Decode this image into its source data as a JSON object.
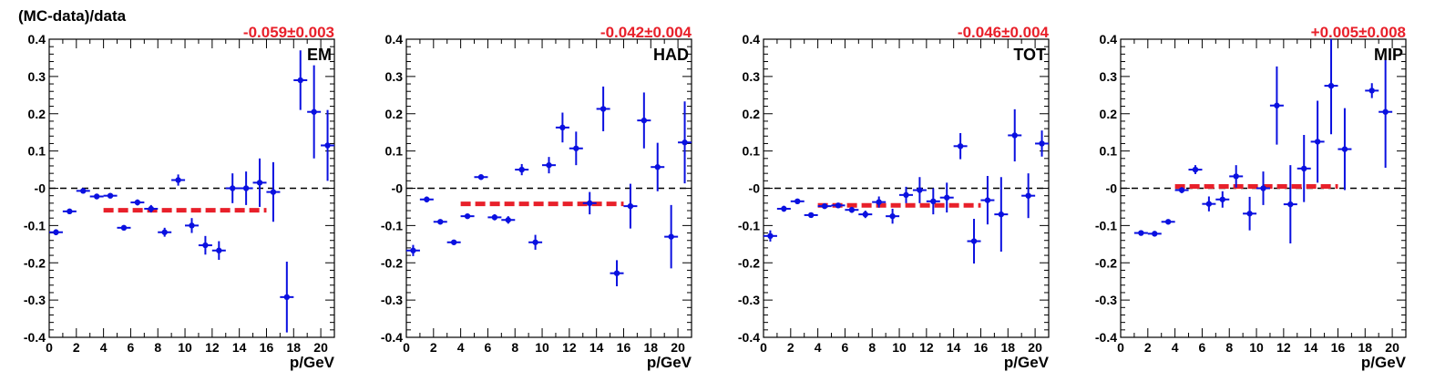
{
  "y_title": "(MC-data)/data",
  "chart_data": [
    {
      "type": "scatter",
      "label": "EM",
      "fit_label": "-0.059±0.003",
      "xlabel": "p/GeV",
      "xlim": [
        0,
        21
      ],
      "ylim": [
        -0.4,
        0.4
      ],
      "xticks": [
        0,
        2,
        4,
        6,
        8,
        10,
        12,
        14,
        16,
        18,
        20
      ],
      "yticks": [
        -0.4,
        -0.3,
        -0.2,
        -0.1,
        0,
        0.1,
        0.2,
        0.3,
        0.4
      ],
      "ytick_labels": [
        "-0.4",
        "-0.3",
        "-0.2",
        "-0.1",
        "-0",
        "0.1",
        "0.2",
        "0.3",
        "0.4"
      ],
      "points": [
        {
          "x": 0.5,
          "y": -0.118,
          "err": 0.008
        },
        {
          "x": 1.5,
          "y": -0.062,
          "err": 0.006
        },
        {
          "x": 2.5,
          "y": -0.007,
          "err": 0.006
        },
        {
          "x": 3.5,
          "y": -0.022,
          "err": 0.006
        },
        {
          "x": 4.5,
          "y": -0.02,
          "err": 0.006
        },
        {
          "x": 5.5,
          "y": -0.106,
          "err": 0.006
        },
        {
          "x": 6.5,
          "y": -0.038,
          "err": 0.008
        },
        {
          "x": 7.5,
          "y": -0.055,
          "err": 0.01
        },
        {
          "x": 8.5,
          "y": -0.118,
          "err": 0.012
        },
        {
          "x": 9.5,
          "y": 0.022,
          "err": 0.015
        },
        {
          "x": 10.5,
          "y": -0.1,
          "err": 0.02
        },
        {
          "x": 11.5,
          "y": -0.153,
          "err": 0.025
        },
        {
          "x": 12.5,
          "y": -0.167,
          "err": 0.025
        },
        {
          "x": 13.5,
          "y": 0.0,
          "err": 0.04
        },
        {
          "x": 14.5,
          "y": 0.0,
          "err": 0.045
        },
        {
          "x": 15.5,
          "y": 0.015,
          "err": 0.065
        },
        {
          "x": 16.5,
          "y": -0.01,
          "err": 0.08
        },
        {
          "x": 17.5,
          "y": -0.292,
          "err": 0.095
        },
        {
          "x": 18.5,
          "y": 0.29,
          "err": 0.08
        },
        {
          "x": 19.5,
          "y": 0.205,
          "err": 0.125
        },
        {
          "x": 20.5,
          "y": 0.115,
          "err": 0.095
        }
      ],
      "fit": {
        "value": -0.059,
        "x_from": 4,
        "x_to": 16
      },
      "zero_line": 0
    },
    {
      "type": "scatter",
      "label": "HAD",
      "fit_label": "-0.042±0.004",
      "xlabel": "p/GeV",
      "xlim": [
        0,
        21
      ],
      "ylim": [
        -0.4,
        0.4
      ],
      "xticks": [
        0,
        2,
        4,
        6,
        8,
        10,
        12,
        14,
        16,
        18,
        20
      ],
      "yticks": [
        -0.4,
        -0.3,
        -0.2,
        -0.1,
        0,
        0.1,
        0.2,
        0.3,
        0.4
      ],
      "ytick_labels": [
        "-0.4",
        "-0.3",
        "-0.2",
        "-0.1",
        "-0",
        "0.1",
        "0.2",
        "0.3",
        "0.4"
      ],
      "points": [
        {
          "x": 0.5,
          "y": -0.167,
          "err": 0.015
        },
        {
          "x": 1.5,
          "y": -0.03,
          "err": 0.008
        },
        {
          "x": 2.5,
          "y": -0.09,
          "err": 0.006
        },
        {
          "x": 3.5,
          "y": -0.145,
          "err": 0.006
        },
        {
          "x": 4.5,
          "y": -0.075,
          "err": 0.006
        },
        {
          "x": 5.5,
          "y": 0.03,
          "err": 0.006
        },
        {
          "x": 6.5,
          "y": -0.078,
          "err": 0.008
        },
        {
          "x": 7.5,
          "y": -0.085,
          "err": 0.01
        },
        {
          "x": 8.5,
          "y": 0.05,
          "err": 0.015
        },
        {
          "x": 9.5,
          "y": -0.145,
          "err": 0.02
        },
        {
          "x": 10.5,
          "y": 0.062,
          "err": 0.022
        },
        {
          "x": 11.5,
          "y": 0.163,
          "err": 0.04
        },
        {
          "x": 12.5,
          "y": 0.107,
          "err": 0.045
        },
        {
          "x": 13.5,
          "y": -0.04,
          "err": 0.03
        },
        {
          "x": 14.5,
          "y": 0.213,
          "err": 0.06
        },
        {
          "x": 15.5,
          "y": -0.228,
          "err": 0.035
        },
        {
          "x": 16.5,
          "y": -0.048,
          "err": 0.06
        },
        {
          "x": 17.5,
          "y": 0.182,
          "err": 0.075
        },
        {
          "x": 18.5,
          "y": 0.057,
          "err": 0.065
        },
        {
          "x": 19.5,
          "y": -0.13,
          "err": 0.085
        },
        {
          "x": 20.5,
          "y": 0.123,
          "err": 0.11
        }
      ],
      "fit": {
        "value": -0.042,
        "x_from": 4,
        "x_to": 16
      },
      "zero_line": 0
    },
    {
      "type": "scatter",
      "label": "TOT",
      "fit_label": "-0.046±0.004",
      "xlabel": "p/GeV",
      "xlim": [
        0,
        21
      ],
      "ylim": [
        -0.4,
        0.4
      ],
      "xticks": [
        0,
        2,
        4,
        6,
        8,
        10,
        12,
        14,
        16,
        18,
        20
      ],
      "yticks": [
        -0.4,
        -0.3,
        -0.2,
        -0.1,
        0,
        0.1,
        0.2,
        0.3,
        0.4
      ],
      "ytick_labels": [
        "-0.4",
        "-0.3",
        "-0.2",
        "-0.1",
        "-0",
        "0.1",
        "0.2",
        "0.3",
        "0.4"
      ],
      "points": [
        {
          "x": 0.5,
          "y": -0.128,
          "err": 0.015
        },
        {
          "x": 1.5,
          "y": -0.055,
          "err": 0.008
        },
        {
          "x": 2.5,
          "y": -0.035,
          "err": 0.006
        },
        {
          "x": 3.5,
          "y": -0.072,
          "err": 0.006
        },
        {
          "x": 4.5,
          "y": -0.048,
          "err": 0.006
        },
        {
          "x": 5.5,
          "y": -0.046,
          "err": 0.006
        },
        {
          "x": 6.5,
          "y": -0.058,
          "err": 0.008
        },
        {
          "x": 7.5,
          "y": -0.07,
          "err": 0.01
        },
        {
          "x": 8.5,
          "y": -0.037,
          "err": 0.015
        },
        {
          "x": 9.5,
          "y": -0.075,
          "err": 0.02
        },
        {
          "x": 10.5,
          "y": -0.018,
          "err": 0.022
        },
        {
          "x": 11.5,
          "y": -0.005,
          "err": 0.035
        },
        {
          "x": 12.5,
          "y": -0.035,
          "err": 0.035
        },
        {
          "x": 13.5,
          "y": -0.025,
          "err": 0.04
        },
        {
          "x": 14.5,
          "y": 0.113,
          "err": 0.035
        },
        {
          "x": 15.5,
          "y": -0.142,
          "err": 0.06
        },
        {
          "x": 16.5,
          "y": -0.032,
          "err": 0.065
        },
        {
          "x": 17.5,
          "y": -0.07,
          "err": 0.1
        },
        {
          "x": 18.5,
          "y": 0.142,
          "err": 0.07
        },
        {
          "x": 19.5,
          "y": -0.02,
          "err": 0.06
        },
        {
          "x": 20.5,
          "y": 0.12,
          "err": 0.035
        }
      ],
      "fit": {
        "value": -0.046,
        "x_from": 4,
        "x_to": 16
      },
      "zero_line": 0
    },
    {
      "type": "scatter",
      "label": "MIP",
      "fit_label": "+0.005±0.008",
      "xlabel": "p/GeV",
      "xlim": [
        0,
        21
      ],
      "ylim": [
        -0.4,
        0.4
      ],
      "xticks": [
        0,
        2,
        4,
        6,
        8,
        10,
        12,
        14,
        16,
        18,
        20
      ],
      "yticks": [
        -0.4,
        -0.3,
        -0.2,
        -0.1,
        0,
        0.1,
        0.2,
        0.3,
        0.4
      ],
      "ytick_labels": [
        "-0.4",
        "-0.3",
        "-0.2",
        "-0.1",
        "-0",
        "0.1",
        "0.2",
        "0.3",
        "0.4"
      ],
      "points": [
        {
          "x": 1.5,
          "y": -0.12,
          "err": 0.006
        },
        {
          "x": 2.5,
          "y": -0.122,
          "err": 0.006
        },
        {
          "x": 3.5,
          "y": -0.09,
          "err": 0.006
        },
        {
          "x": 4.5,
          "y": -0.005,
          "err": 0.008
        },
        {
          "x": 5.5,
          "y": 0.05,
          "err": 0.012
        },
        {
          "x": 6.5,
          "y": -0.042,
          "err": 0.02
        },
        {
          "x": 7.5,
          "y": -0.03,
          "err": 0.022
        },
        {
          "x": 8.5,
          "y": 0.032,
          "err": 0.03
        },
        {
          "x": 9.5,
          "y": -0.068,
          "err": 0.045
        },
        {
          "x": 10.5,
          "y": 0.0,
          "err": 0.045
        },
        {
          "x": 11.5,
          "y": 0.222,
          "err": 0.105
        },
        {
          "x": 12.5,
          "y": -0.043,
          "err": 0.105
        },
        {
          "x": 13.5,
          "y": 0.053,
          "err": 0.09
        },
        {
          "x": 14.5,
          "y": 0.125,
          "err": 0.11
        },
        {
          "x": 15.5,
          "y": 0.275,
          "err": 0.13
        },
        {
          "x": 16.5,
          "y": 0.105,
          "err": 0.11
        },
        {
          "x": 18.5,
          "y": 0.262,
          "err": 0.02
        },
        {
          "x": 19.5,
          "y": 0.205,
          "err": 0.15
        }
      ],
      "fit": {
        "value": 0.005,
        "x_from": 4,
        "x_to": 16
      },
      "zero_line": 0
    }
  ]
}
